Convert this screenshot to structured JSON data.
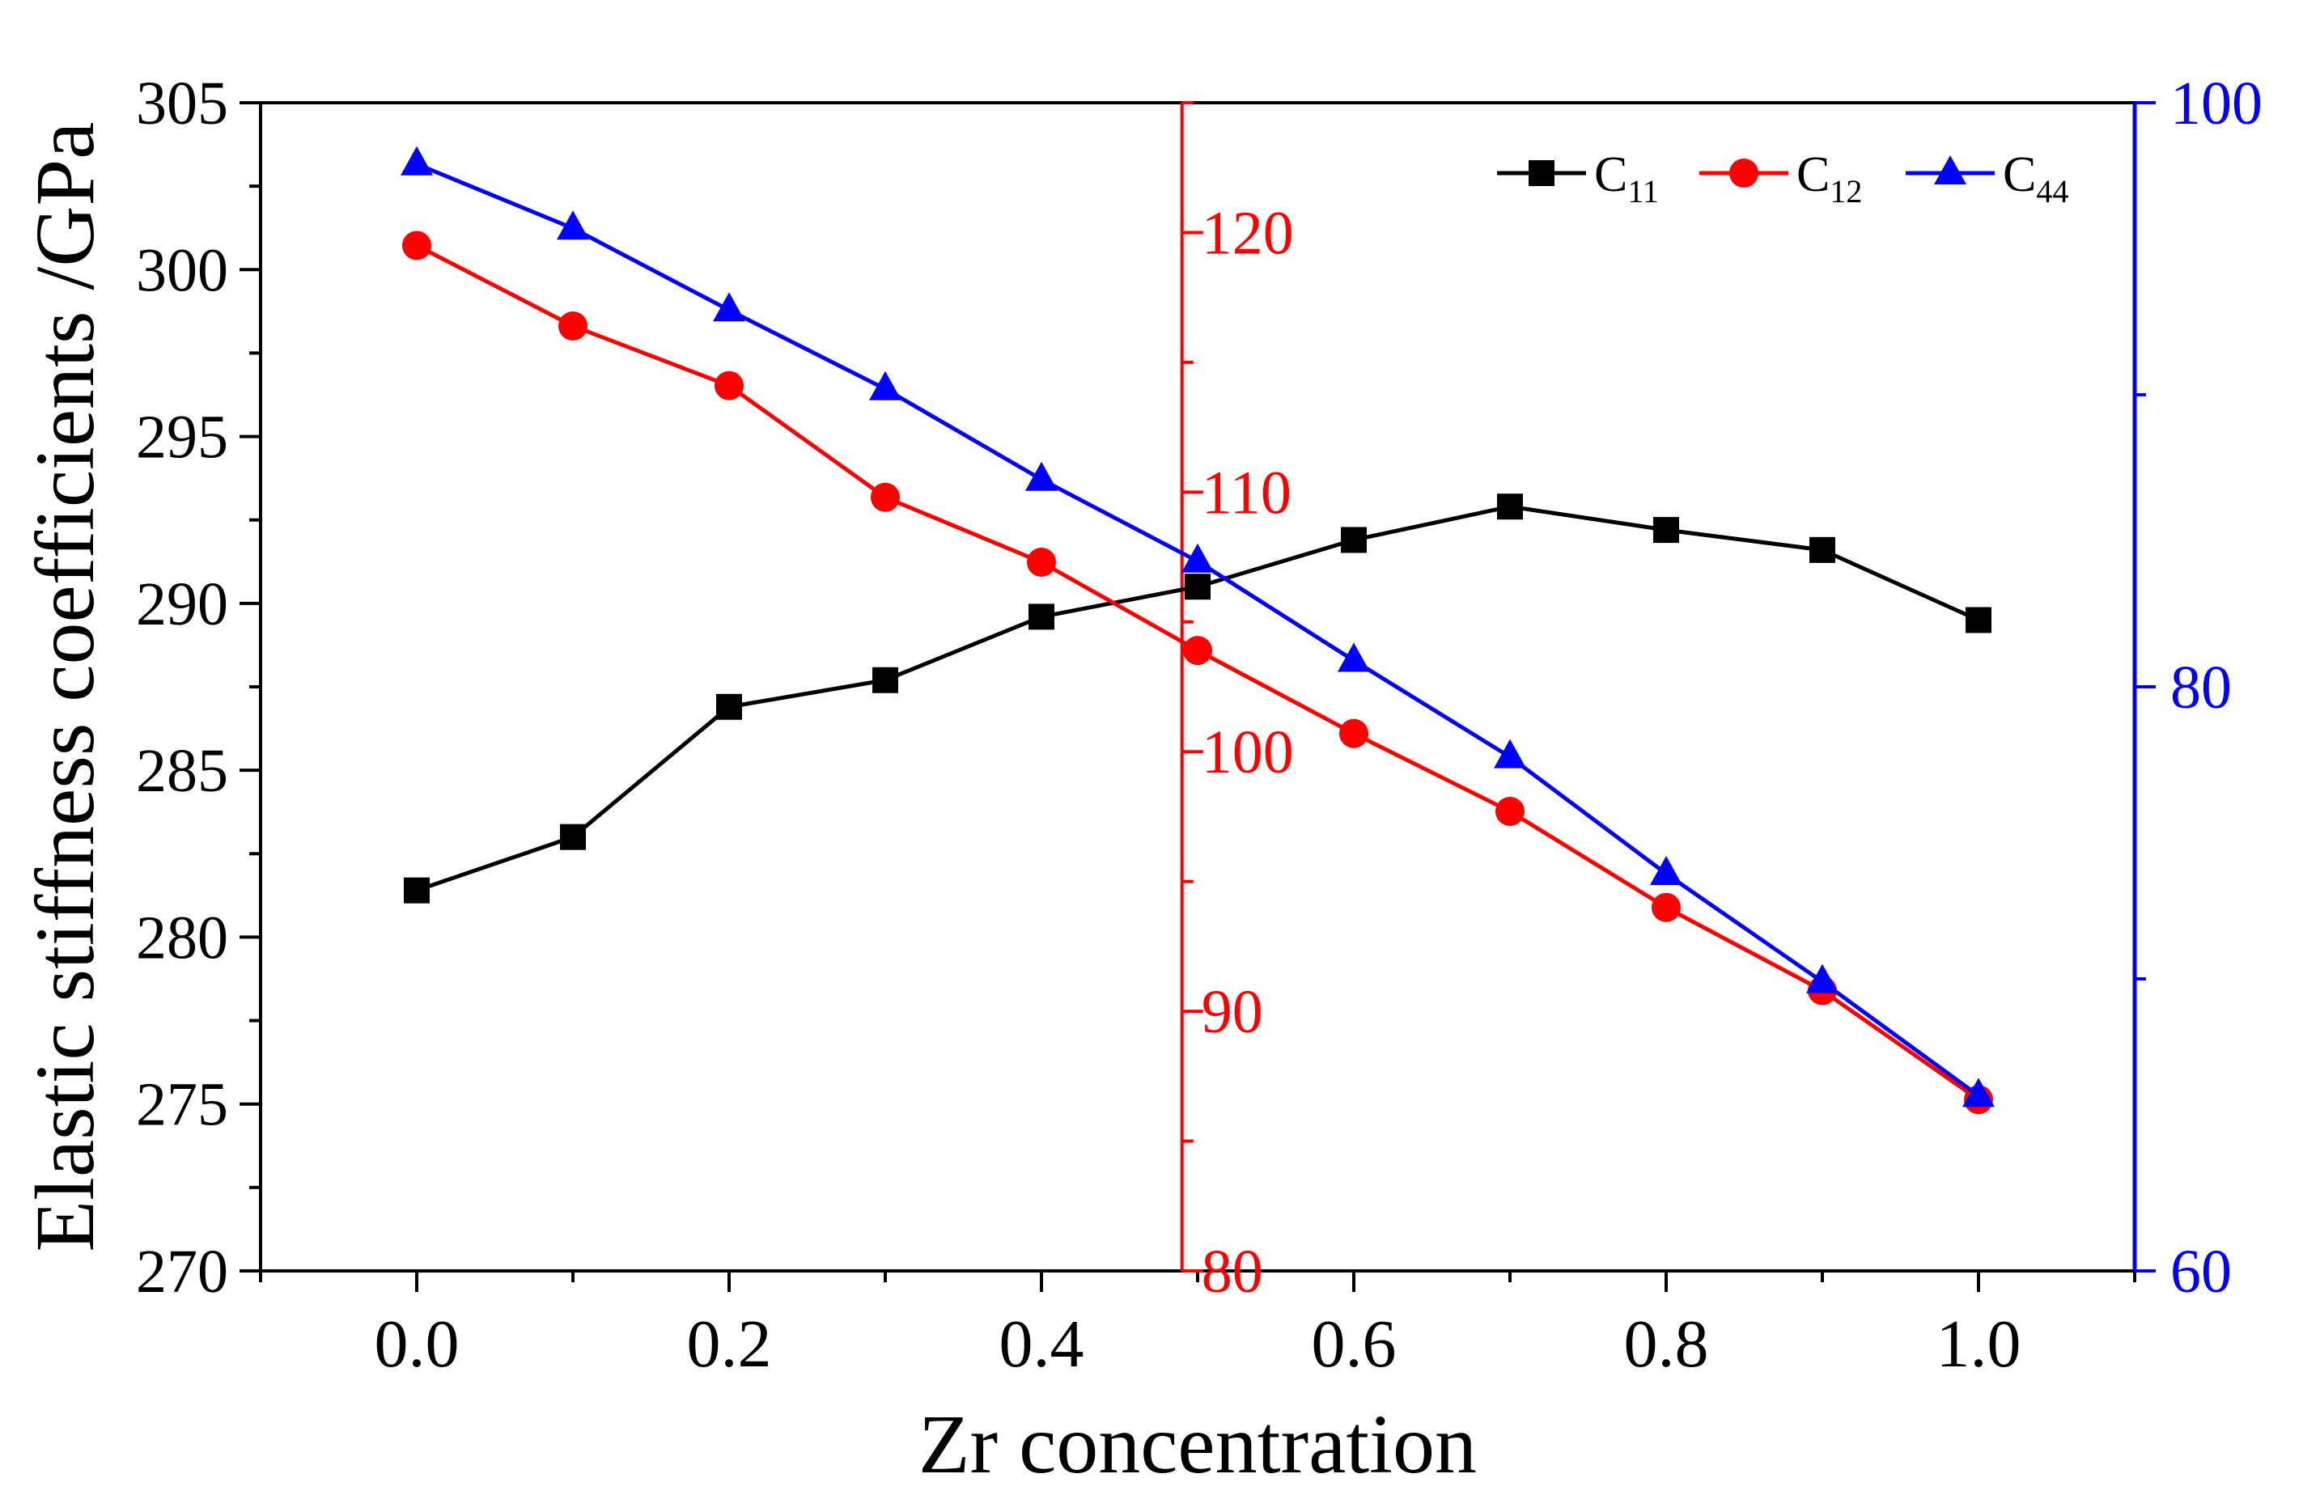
{
  "chart_data": {
    "type": "line",
    "xlabel": "Zr concentration",
    "ylabel_left": "Elastic stiffness coefficients /GPa",
    "x": [
      0.0,
      0.1,
      0.2,
      0.3,
      0.4,
      0.5,
      0.6,
      0.7,
      0.8,
      0.9,
      1.0
    ],
    "xlim": [
      -0.1,
      1.1
    ],
    "x_ticks": [
      "0.0",
      "0.2",
      "0.4",
      "0.6",
      "0.8",
      "1.0"
    ],
    "x_tick_values": [
      0.0,
      0.2,
      0.4,
      0.6,
      0.8,
      1.0
    ],
    "axes": {
      "left": {
        "range": [
          270,
          305
        ],
        "ticks": [
          "270",
          "275",
          "280",
          "285",
          "290",
          "295",
          "300",
          "305"
        ],
        "tick_values": [
          270,
          275,
          280,
          285,
          290,
          295,
          300,
          305
        ],
        "color": "#000000"
      },
      "middle": {
        "range": [
          80,
          125
        ],
        "ticks": [
          "80",
          "90",
          "100",
          "110",
          "120"
        ],
        "tick_values": [
          80,
          90,
          100,
          110,
          120
        ],
        "color": "#ff0000",
        "position_x": 0.49
      },
      "right": {
        "range": [
          60,
          100
        ],
        "ticks": [
          "60",
          "80",
          "100"
        ],
        "tick_values": [
          60,
          80,
          100
        ],
        "color": "#0000ff"
      }
    },
    "series": [
      {
        "name": "C11",
        "label_main": "C",
        "label_sub": "11",
        "axis": "left",
        "color": "#000000",
        "marker": "square",
        "values": [
          281.4,
          283.0,
          286.9,
          287.7,
          289.6,
          290.5,
          291.9,
          292.9,
          292.2,
          291.6,
          289.5
        ]
      },
      {
        "name": "C12",
        "label_main": "C",
        "label_sub": "12",
        "axis": "middle",
        "color": "#ff0000",
        "marker": "circle",
        "values": [
          119.5,
          116.4,
          114.1,
          109.8,
          107.3,
          103.9,
          100.7,
          97.7,
          94.0,
          90.8,
          86.6
        ]
      },
      {
        "name": "C44",
        "label_main": "C",
        "label_sub": "44",
        "axis": "right",
        "color": "#0000ff",
        "marker": "triangle",
        "values": [
          97.9,
          95.7,
          92.9,
          90.2,
          87.1,
          84.3,
          80.9,
          77.6,
          73.6,
          69.9,
          66.0
        ]
      }
    ],
    "legend_position": "top-right",
    "grid": false
  }
}
